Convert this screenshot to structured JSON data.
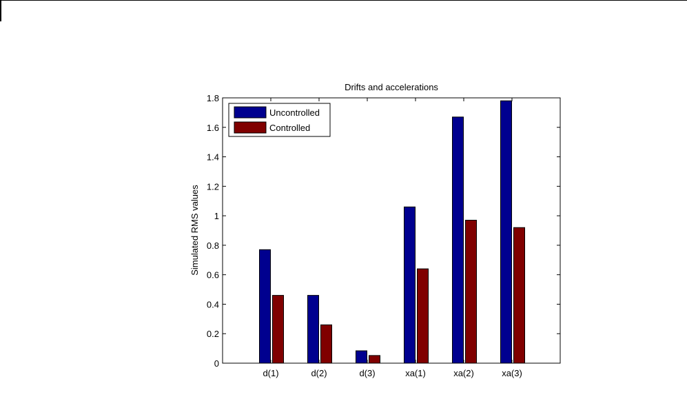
{
  "chart_data": {
    "type": "bar",
    "title": "Drifts and accelerations",
    "xlabel": "",
    "ylabel": "Simulated RMS values",
    "categories": [
      "d(1)",
      "d(2)",
      "d(3)",
      "xa(1)",
      "xa(2)",
      "xa(3)"
    ],
    "series": [
      {
        "name": "Uncontrolled",
        "color": "#00008f",
        "values": [
          0.77,
          0.46,
          0.084,
          1.06,
          1.67,
          1.78
        ]
      },
      {
        "name": "Controlled",
        "color": "#800000",
        "values": [
          0.46,
          0.26,
          0.052,
          0.64,
          0.97,
          0.92
        ]
      }
    ],
    "ylim": [
      0,
      1.8
    ],
    "xlim": [
      0,
      7
    ],
    "yticks": [
      0,
      0.2,
      0.4,
      0.6,
      0.8,
      1,
      1.2,
      1.4,
      1.6,
      1.8
    ],
    "ytick_labels": [
      "0",
      "0.2",
      "0.4",
      "0.6",
      "0.8",
      "1",
      "1.2",
      "1.4",
      "1.6",
      "1.8"
    ],
    "grid": false,
    "legend_position": "top-left"
  }
}
